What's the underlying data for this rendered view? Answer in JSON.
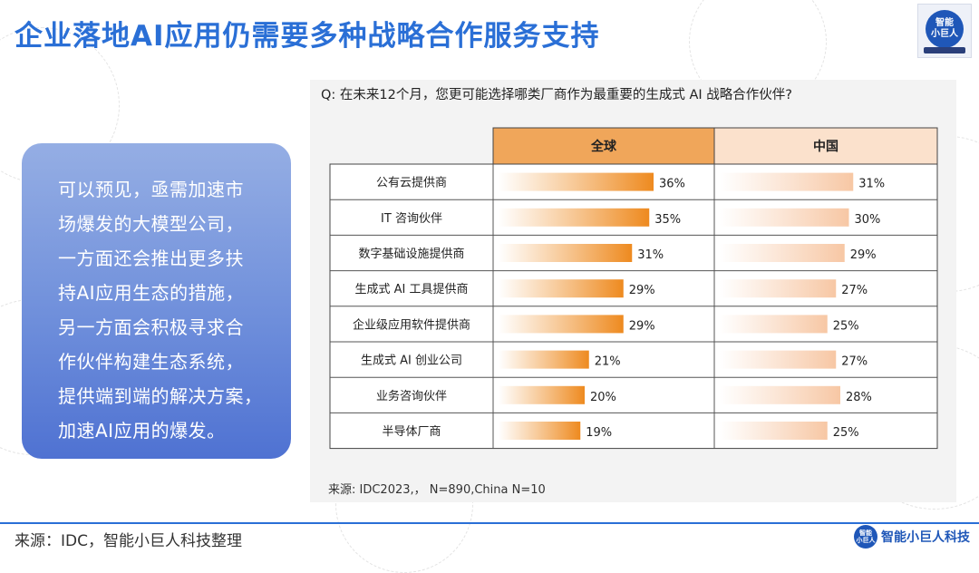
{
  "header": {
    "title": "企业落地AI应用仍需要多种战略合作服务支持"
  },
  "logo": {
    "text_line1": "智能",
    "text_line2": "小巨人"
  },
  "callout": {
    "lines": [
      "可以预见，亟需加速市",
      "场爆发的大模型公司，",
      "一方面还会推出更多扶",
      "持AI应用生态的措施，",
      "另一方面会积极寻求合",
      "作伙伴构建生态系统，",
      "提供端到端的解决方案，",
      "加速AI应用的爆发。"
    ]
  },
  "chart_panel": {
    "question": "Q: 在未来12个月，您更可能选择哪类厂商作为最重要的生成式 AI 战略合作伙伴?",
    "source": "来源: IDC2023,，  N=890,China N=10"
  },
  "chart_data": {
    "type": "bar",
    "orientation": "horizontal",
    "categories": [
      "公有云提供商",
      "IT 咨询伙伴",
      "数字基础设施提供商",
      "生成式 AI 工具提供商",
      "企业级应用软件提供商",
      "生成式 AI 创业公司",
      "业务咨询伙伴",
      "半导体厂商"
    ],
    "series": [
      {
        "name": "全球",
        "values": [
          36,
          35,
          31,
          29,
          29,
          21,
          20,
          19
        ],
        "labels": [
          "36%",
          "35%",
          "31%",
          "29%",
          "29%",
          "21%",
          "20%",
          "19%"
        ],
        "color": "#ee8a1f"
      },
      {
        "name": "中国",
        "values": [
          31,
          30,
          29,
          27,
          25,
          27,
          28,
          25
        ],
        "labels": [
          "31%",
          "30%",
          "29%",
          "27%",
          "25%",
          "27%",
          "28%",
          "25%"
        ],
        "color": "#f7c7a4"
      }
    ],
    "header_colors": {
      "global": "#f0a65a",
      "china": "#fbe1cc"
    },
    "xlim": [
      0,
      40
    ],
    "unit": "%",
    "legend": "column headers"
  },
  "footer": {
    "source": "来源：IDC，智能小巨人科技整理",
    "logo_text": "智能小巨人科技",
    "logo_badge_line1": "智能",
    "logo_badge_line2": "小巨人"
  }
}
